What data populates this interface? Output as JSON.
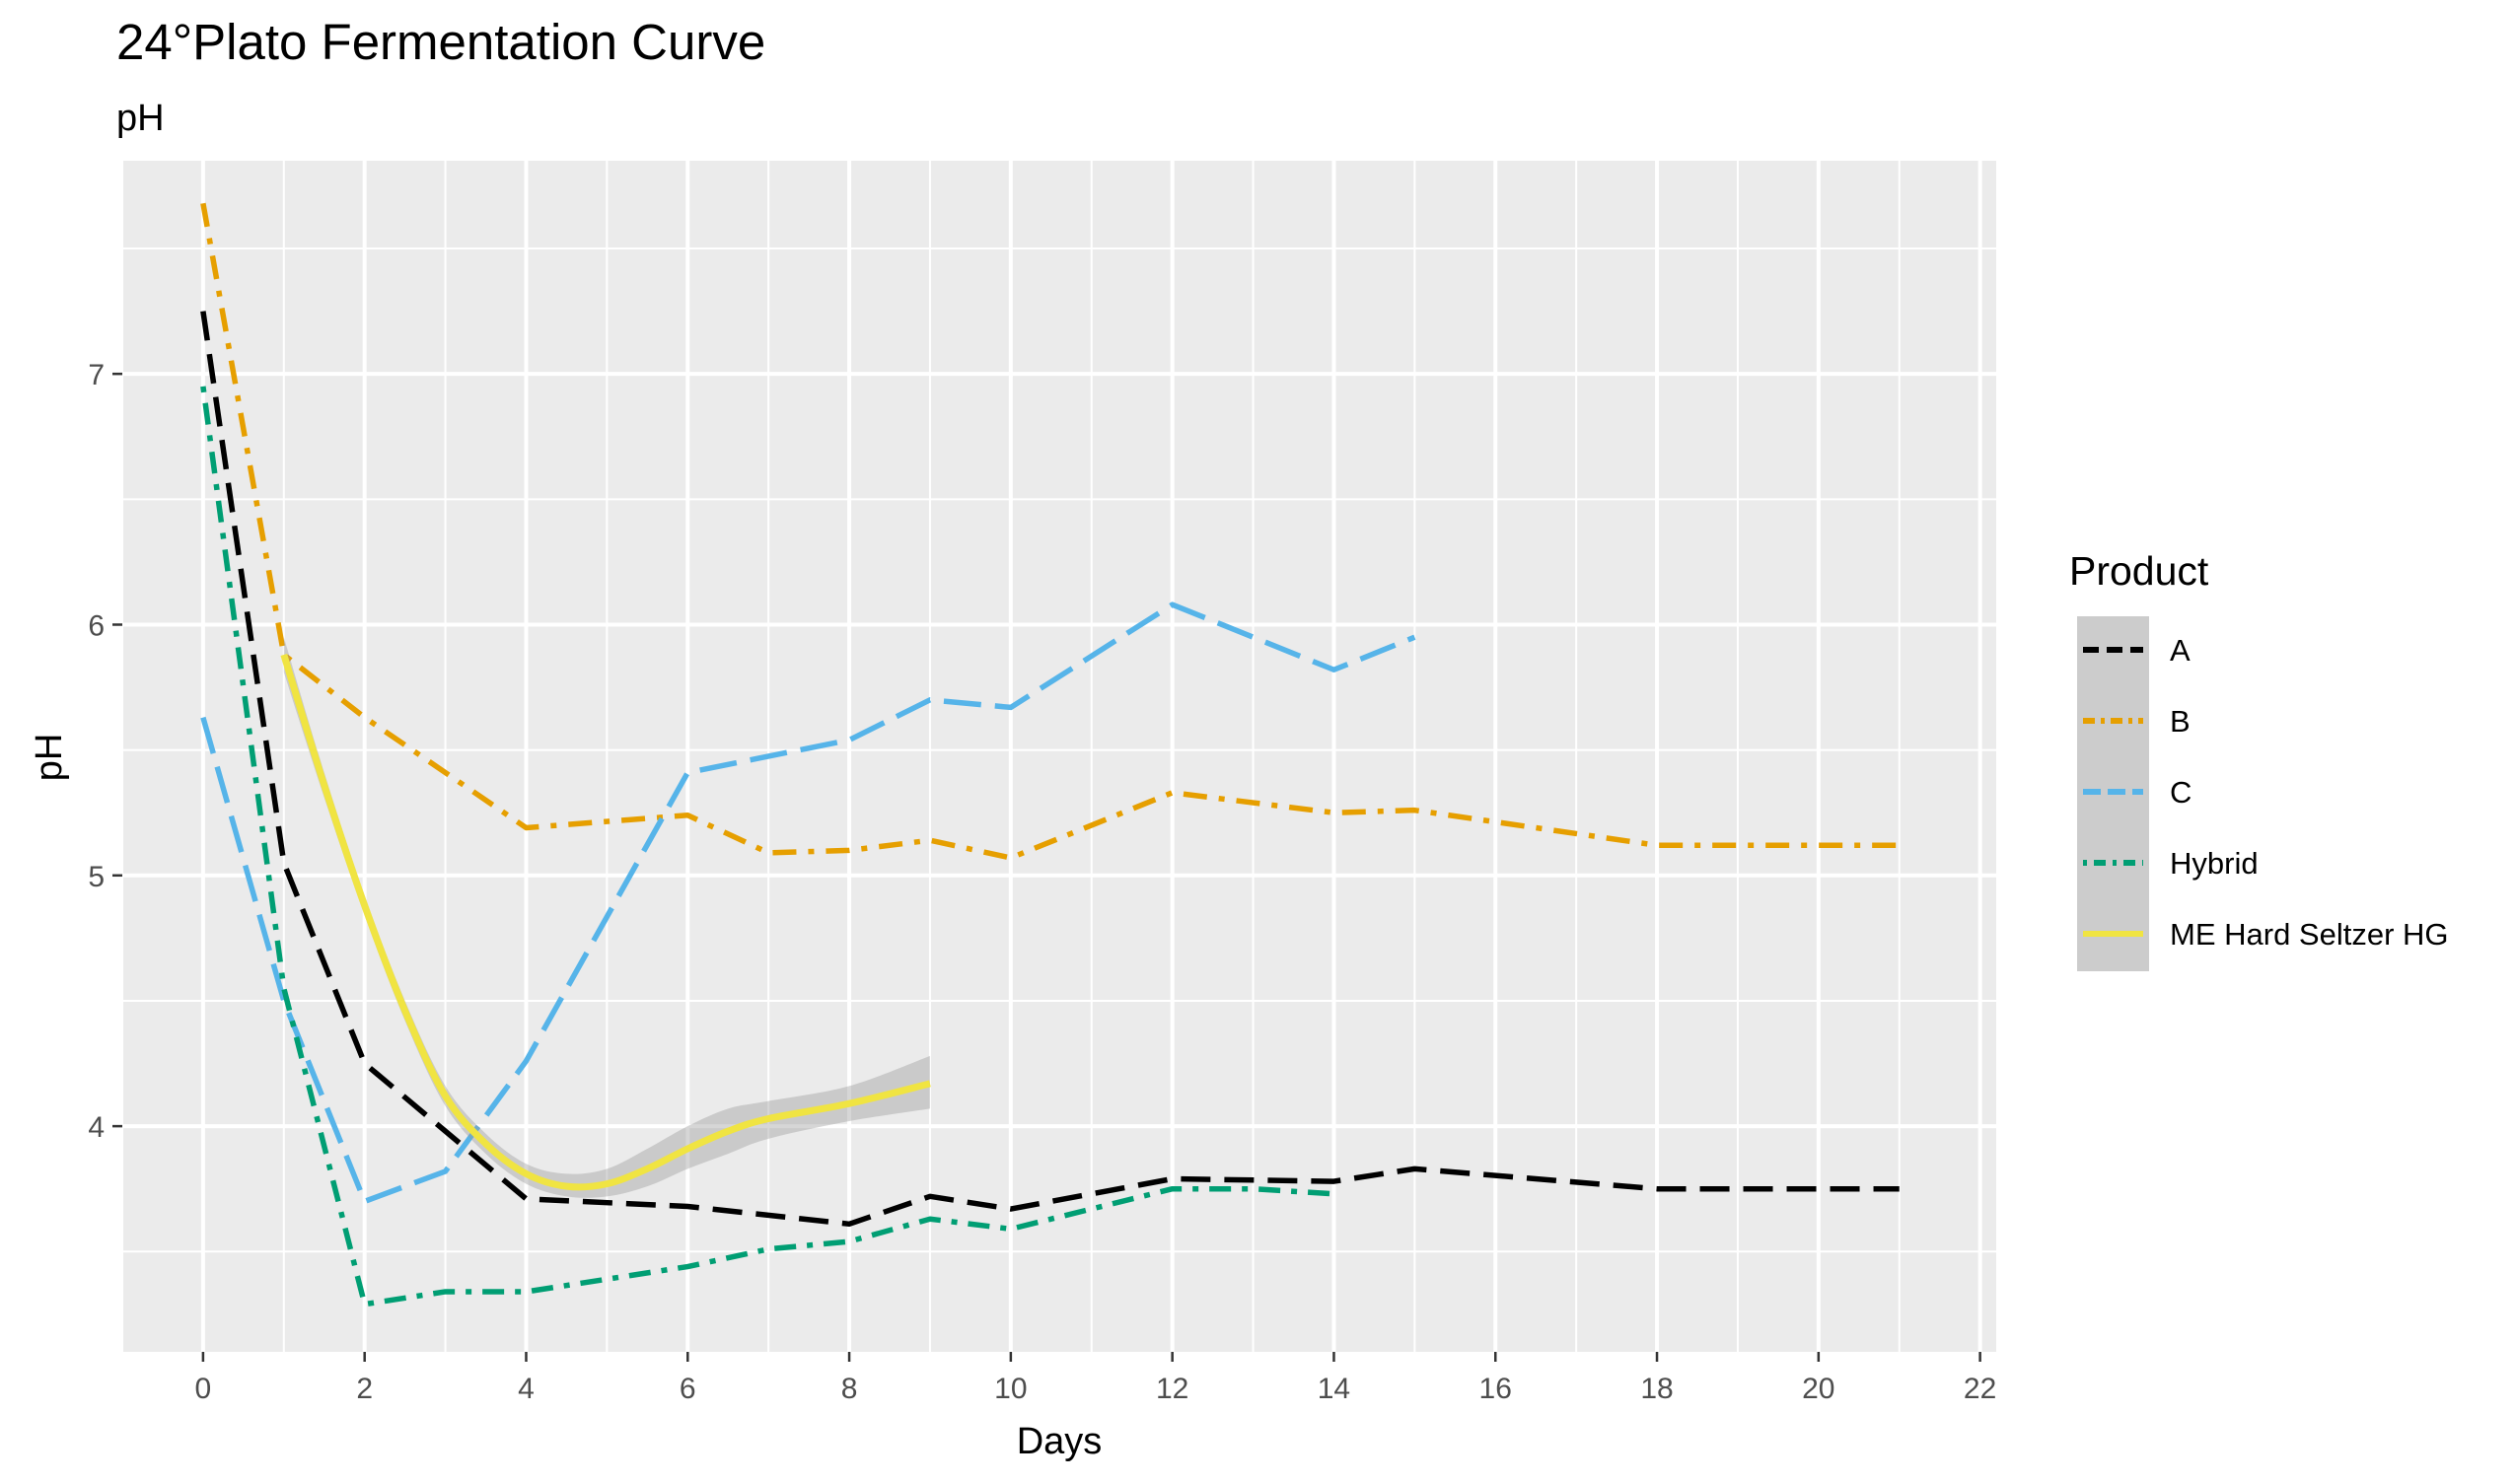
{
  "chart_data": {
    "type": "line",
    "title": "24°Plato Fermentation Curve",
    "subtitle": "pH",
    "xlabel": "Days",
    "ylabel": "pH",
    "xlim": [
      -1,
      22.2
    ],
    "ylim": [
      3.1,
      7.85
    ],
    "x_ticks": [
      0,
      2,
      4,
      6,
      8,
      10,
      12,
      14,
      16,
      18,
      20,
      22
    ],
    "y_ticks": [
      4,
      5,
      6,
      7
    ],
    "grid": true,
    "legend": {
      "title": "Product",
      "position": "right"
    },
    "series": [
      {
        "name": "A",
        "color": "#000000",
        "dash": "longdash",
        "points": [
          [
            0,
            7.25
          ],
          [
            1,
            5.05
          ],
          [
            2,
            4.25
          ],
          [
            4,
            3.71
          ],
          [
            6,
            3.68
          ],
          [
            8,
            3.61
          ],
          [
            9,
            3.72
          ],
          [
            10,
            3.67
          ],
          [
            12,
            3.79
          ],
          [
            14,
            3.78
          ],
          [
            15,
            3.83
          ],
          [
            18,
            3.75
          ],
          [
            21,
            3.75
          ]
        ]
      },
      {
        "name": "B",
        "color": "#E69F00",
        "dash": "dashdot",
        "points": [
          [
            0,
            7.68
          ],
          [
            1,
            5.88
          ],
          [
            2,
            5.63
          ],
          [
            4,
            5.19
          ],
          [
            6,
            5.24
          ],
          [
            7,
            5.09
          ],
          [
            8,
            5.1
          ],
          [
            9,
            5.14
          ],
          [
            10,
            5.07
          ],
          [
            12,
            5.33
          ],
          [
            14,
            5.25
          ],
          [
            15,
            5.26
          ],
          [
            18,
            5.12
          ],
          [
            21,
            5.12
          ]
        ]
      },
      {
        "name": "C",
        "color": "#56B4E9",
        "dash": "dashed",
        "points": [
          [
            0,
            5.63
          ],
          [
            1,
            4.5
          ],
          [
            2,
            3.7
          ],
          [
            3,
            3.82
          ],
          [
            4,
            4.26
          ],
          [
            6,
            5.41
          ],
          [
            8,
            5.54
          ],
          [
            9,
            5.7
          ],
          [
            10,
            5.67
          ],
          [
            12,
            6.08
          ],
          [
            14,
            5.82
          ],
          [
            15,
            5.95
          ]
        ]
      },
      {
        "name": "Hybrid",
        "color": "#009E73",
        "dash": "dotdash",
        "points": [
          [
            0,
            6.95
          ],
          [
            1,
            4.55
          ],
          [
            2,
            3.29
          ],
          [
            3,
            3.34
          ],
          [
            4,
            3.34
          ],
          [
            6,
            3.44
          ],
          [
            7,
            3.51
          ],
          [
            8,
            3.54
          ],
          [
            9,
            3.63
          ],
          [
            10,
            3.59
          ],
          [
            12,
            3.75
          ],
          [
            13,
            3.75
          ],
          [
            14,
            3.73
          ]
        ]
      },
      {
        "name": "ME Hard Seltzer HG",
        "color": "#F0E442",
        "dash": "solid",
        "smooth": true,
        "points": [
          [
            1,
            5.88
          ],
          [
            1.5,
            5.36
          ],
          [
            2,
            4.88
          ],
          [
            2.5,
            4.46
          ],
          [
            3,
            4.12
          ],
          [
            3.5,
            3.93
          ],
          [
            4,
            3.81
          ],
          [
            4.5,
            3.76
          ],
          [
            5,
            3.77
          ],
          [
            5.5,
            3.83
          ],
          [
            6,
            3.91
          ],
          [
            6.5,
            3.98
          ],
          [
            7,
            4.03
          ],
          [
            8,
            4.09
          ],
          [
            9,
            4.17
          ]
        ],
        "band_upper": [
          5.95,
          5.41,
          4.92,
          4.5,
          4.16,
          3.97,
          3.85,
          3.81,
          3.83,
          3.91,
          4.0,
          4.07,
          4.1,
          4.16,
          4.28
        ],
        "band_lower": [
          5.81,
          5.31,
          4.84,
          4.42,
          4.08,
          3.89,
          3.77,
          3.72,
          3.72,
          3.76,
          3.83,
          3.89,
          3.95,
          4.02,
          4.07
        ]
      }
    ]
  }
}
